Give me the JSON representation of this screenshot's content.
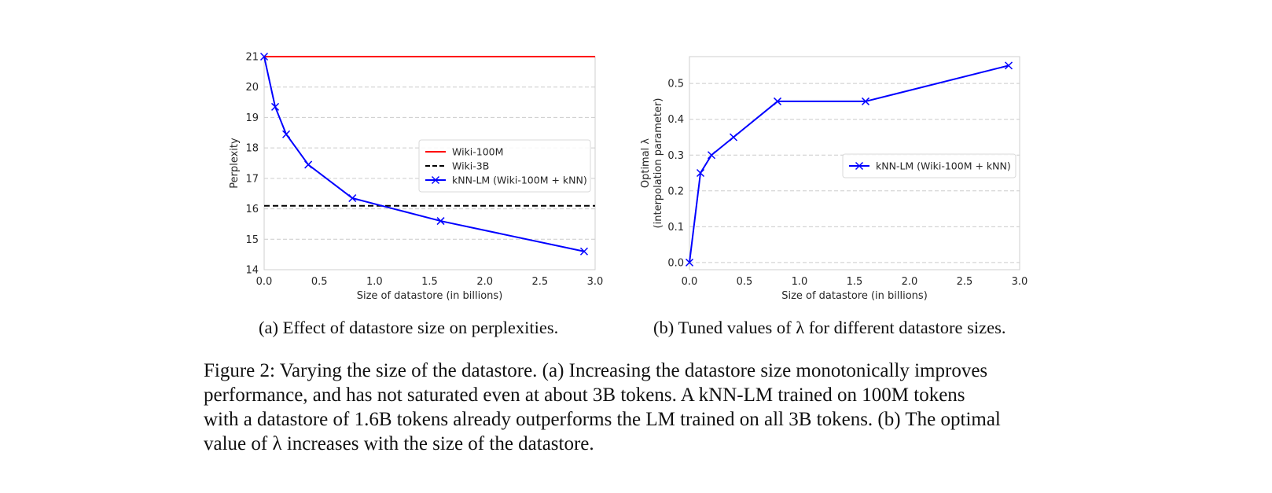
{
  "chart_data": [
    {
      "id": "a",
      "type": "line",
      "xlabel": "Size of datastore (in billions)",
      "ylabel": "Perplexity",
      "xlim": [
        0.0,
        3.0
      ],
      "ylim": [
        14,
        21
      ],
      "xticks": [
        "0.0",
        "0.5",
        "1.0",
        "1.5",
        "2.0",
        "2.5",
        "3.0"
      ],
      "xtick_values": [
        0.0,
        0.5,
        1.0,
        1.5,
        2.0,
        2.5,
        3.0
      ],
      "yticks": [
        "14",
        "15",
        "16",
        "17",
        "18",
        "19",
        "20",
        "21"
      ],
      "ytick_values": [
        14,
        15,
        16,
        17,
        18,
        19,
        20,
        21
      ],
      "grid": "horizontal dashed",
      "legend_position": "center-right",
      "series": [
        {
          "name": "Wiki-100M",
          "kind": "hline",
          "value": 21.0,
          "color": "#ff0000",
          "style": "solid"
        },
        {
          "name": "Wiki-3B",
          "kind": "hline",
          "value": 16.1,
          "color": "#000000",
          "style": "dashed"
        },
        {
          "name": "kNN-LM (Wiki-100M + kNN)",
          "kind": "line",
          "marker": "x",
          "color": "#0000ff",
          "x": [
            0.0,
            0.1,
            0.2,
            0.4,
            0.8,
            1.6,
            2.9
          ],
          "y": [
            21.0,
            19.35,
            18.45,
            17.45,
            16.35,
            15.6,
            14.6
          ]
        }
      ]
    },
    {
      "id": "b",
      "type": "line",
      "xlabel": "Size of datastore (in billions)",
      "ylabel_line1": "Optimal λ",
      "ylabel_line2": "(interpolation parameter)",
      "xlim": [
        0.0,
        3.0
      ],
      "ylim": [
        -0.02,
        0.575
      ],
      "xticks": [
        "0.0",
        "0.5",
        "1.0",
        "1.5",
        "2.0",
        "2.5",
        "3.0"
      ],
      "xtick_values": [
        0.0,
        0.5,
        1.0,
        1.5,
        2.0,
        2.5,
        3.0
      ],
      "yticks": [
        "0.0",
        "0.1",
        "0.2",
        "0.3",
        "0.4",
        "0.5"
      ],
      "ytick_values": [
        0.0,
        0.1,
        0.2,
        0.3,
        0.4,
        0.5
      ],
      "grid": "horizontal dashed",
      "legend_position": "center-right",
      "series": [
        {
          "name": "kNN-LM (Wiki-100M + kNN)",
          "kind": "line",
          "marker": "x",
          "color": "#0000ff",
          "x": [
            0.0,
            0.1,
            0.2,
            0.4,
            0.8,
            1.6,
            2.9
          ],
          "y": [
            0.0,
            0.25,
            0.3,
            0.35,
            0.45,
            0.45,
            0.55
          ]
        }
      ]
    }
  ],
  "captions": {
    "a": "(a) Effect of datastore size on perplexities.",
    "b": "(b) Tuned values of λ for different datastore sizes."
  },
  "figure_caption": {
    "line1": "Figure 2: Varying the size of the datastore. (a) Increasing the datastore size monotonically improves",
    "line2": "performance, and has not saturated even at about 3B tokens. A kNN-LM trained on 100M tokens",
    "line3": "with a datastore of 1.6B tokens already outperforms the LM trained on all 3B tokens. (b) The optimal",
    "line4": "value of λ increases with the size of the datastore."
  }
}
